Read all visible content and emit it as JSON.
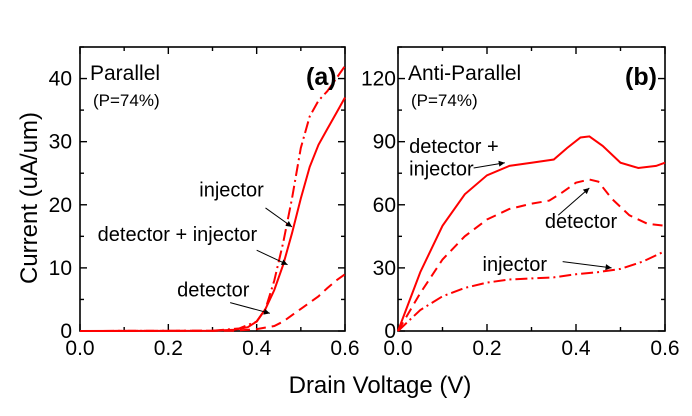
{
  "colors": {
    "series": "#ff0000",
    "axis": "#000000"
  },
  "ylabel": "Current (uA/um)",
  "xlabel": "Drain Voltage (V)",
  "chart_data": [
    {
      "type": "line",
      "tag": "(a)",
      "title": "Parallel",
      "subtitle": "(P=74%)",
      "xlim": [
        0,
        0.6
      ],
      "ylim": [
        0,
        45
      ],
      "xticks": [
        0.0,
        0.2,
        0.4,
        0.6
      ],
      "yticks": [
        0,
        10,
        20,
        30,
        40
      ],
      "xtick_labels": [
        "0.0",
        "0.2",
        "0.4",
        "0.6"
      ],
      "ytick_labels": [
        "0",
        "10",
        "20",
        "30",
        "40"
      ],
      "series": [
        {
          "style": "solid",
          "points": [
            [
              0,
              0
            ],
            [
              0.3,
              0.05
            ],
            [
              0.35,
              0.2
            ],
            [
              0.38,
              0.6
            ],
            [
              0.4,
              1.5
            ],
            [
              0.42,
              3.5
            ],
            [
              0.44,
              6.5
            ],
            [
              0.46,
              10.5
            ],
            [
              0.48,
              15.5
            ],
            [
              0.5,
              21
            ],
            [
              0.52,
              26
            ],
            [
              0.54,
              29.5
            ],
            [
              0.56,
              32
            ],
            [
              0.58,
              34.5
            ],
            [
              0.6,
              37
            ]
          ]
        },
        {
          "style": "dashdot",
          "points": [
            [
              0,
              0
            ],
            [
              0.3,
              0.05
            ],
            [
              0.36,
              0.4
            ],
            [
              0.4,
              1.5
            ],
            [
              0.42,
              3.5
            ],
            [
              0.44,
              8
            ],
            [
              0.46,
              14
            ],
            [
              0.48,
              21
            ],
            [
              0.5,
              29
            ],
            [
              0.52,
              34
            ],
            [
              0.54,
              36.5
            ],
            [
              0.56,
              38
            ],
            [
              0.58,
              40
            ],
            [
              0.6,
              42
            ]
          ]
        },
        {
          "style": "dashed",
          "points": [
            [
              0,
              0
            ],
            [
              0.35,
              0.05
            ],
            [
              0.4,
              0.3
            ],
            [
              0.44,
              0.8
            ],
            [
              0.46,
              1.5
            ],
            [
              0.48,
              2.5
            ],
            [
              0.5,
              3.5
            ],
            [
              0.52,
              4.5
            ],
            [
              0.54,
              5.5
            ],
            [
              0.56,
              6.8
            ],
            [
              0.58,
              8
            ],
            [
              0.6,
              9
            ]
          ]
        }
      ],
      "annotations": [
        {
          "text": "injector",
          "tx": 0.27,
          "ty": 21.3,
          "ax": 0.42,
          "ay": 19.5,
          "hx": 0.48,
          "hy": 16.5
        },
        {
          "text": "detector + injector",
          "tx": 0.04,
          "ty": 14.3,
          "ax": 0.4,
          "ay": 12.8,
          "hx": 0.47,
          "hy": 10.5
        },
        {
          "text": "detector",
          "tx": 0.22,
          "ty": 5.5,
          "ax": 0.34,
          "ay": 4.5,
          "hx": 0.43,
          "hy": 2.8
        }
      ]
    },
    {
      "type": "line",
      "tag": "(b)",
      "title": "Anti-Parallel",
      "subtitle": "(P=74%)",
      "xlim": [
        0,
        0.6
      ],
      "ylim": [
        0,
        135
      ],
      "xticks": [
        0.0,
        0.2,
        0.4,
        0.6
      ],
      "yticks": [
        0,
        30,
        60,
        90,
        120
      ],
      "xtick_labels": [
        "0.0",
        "0.2",
        "0.4",
        "0.6"
      ],
      "ytick_labels": [
        "0",
        "30",
        "60",
        "90",
        "120"
      ],
      "series": [
        {
          "style": "solid",
          "points": [
            [
              0,
              0
            ],
            [
              0.05,
              28
            ],
            [
              0.1,
              50
            ],
            [
              0.15,
              65
            ],
            [
              0.2,
              74
            ],
            [
              0.25,
              78.5
            ],
            [
              0.3,
              80
            ],
            [
              0.35,
              81.5
            ],
            [
              0.38,
              87
            ],
            [
              0.41,
              92
            ],
            [
              0.43,
              92.5
            ],
            [
              0.46,
              88
            ],
            [
              0.5,
              80
            ],
            [
              0.54,
              77.5
            ],
            [
              0.58,
              78.5
            ],
            [
              0.6,
              80
            ]
          ]
        },
        {
          "style": "dashed",
          "points": [
            [
              0,
              0
            ],
            [
              0.05,
              18
            ],
            [
              0.1,
              34
            ],
            [
              0.15,
              45
            ],
            [
              0.2,
              53
            ],
            [
              0.25,
              58
            ],
            [
              0.3,
              60.5
            ],
            [
              0.34,
              62
            ],
            [
              0.37,
              66
            ],
            [
              0.4,
              70.5
            ],
            [
              0.43,
              72
            ],
            [
              0.45,
              71
            ],
            [
              0.48,
              63
            ],
            [
              0.52,
              55
            ],
            [
              0.56,
              51
            ],
            [
              0.6,
              50
            ]
          ]
        },
        {
          "style": "dashdot",
          "points": [
            [
              0,
              0
            ],
            [
              0.05,
              10
            ],
            [
              0.1,
              16.5
            ],
            [
              0.15,
              20.5
            ],
            [
              0.2,
              23
            ],
            [
              0.25,
              24.5
            ],
            [
              0.3,
              25
            ],
            [
              0.35,
              25.5
            ],
            [
              0.4,
              27
            ],
            [
              0.45,
              28
            ],
            [
              0.5,
              29.5
            ],
            [
              0.55,
              33
            ],
            [
              0.6,
              38
            ]
          ]
        }
      ],
      "annotations": [
        {
          "text": "detector +",
          "tx": 0.025,
          "ty": 84.5,
          "ax": null,
          "ay": null,
          "hx": null,
          "hy": null
        },
        {
          "text": "injector",
          "tx": 0.025,
          "ty": 74,
          "ax": 0.17,
          "ay": 77.5,
          "hx": 0.24,
          "hy": 80
        },
        {
          "text": "detector",
          "tx": 0.33,
          "ty": 49,
          "ax": 0.36,
          "ay": 55,
          "hx": 0.43,
          "hy": 68
        },
        {
          "text": "injector",
          "tx": 0.19,
          "ty": 28.5,
          "ax": 0.37,
          "ay": 33,
          "hx": 0.48,
          "hy": 30
        }
      ]
    }
  ]
}
